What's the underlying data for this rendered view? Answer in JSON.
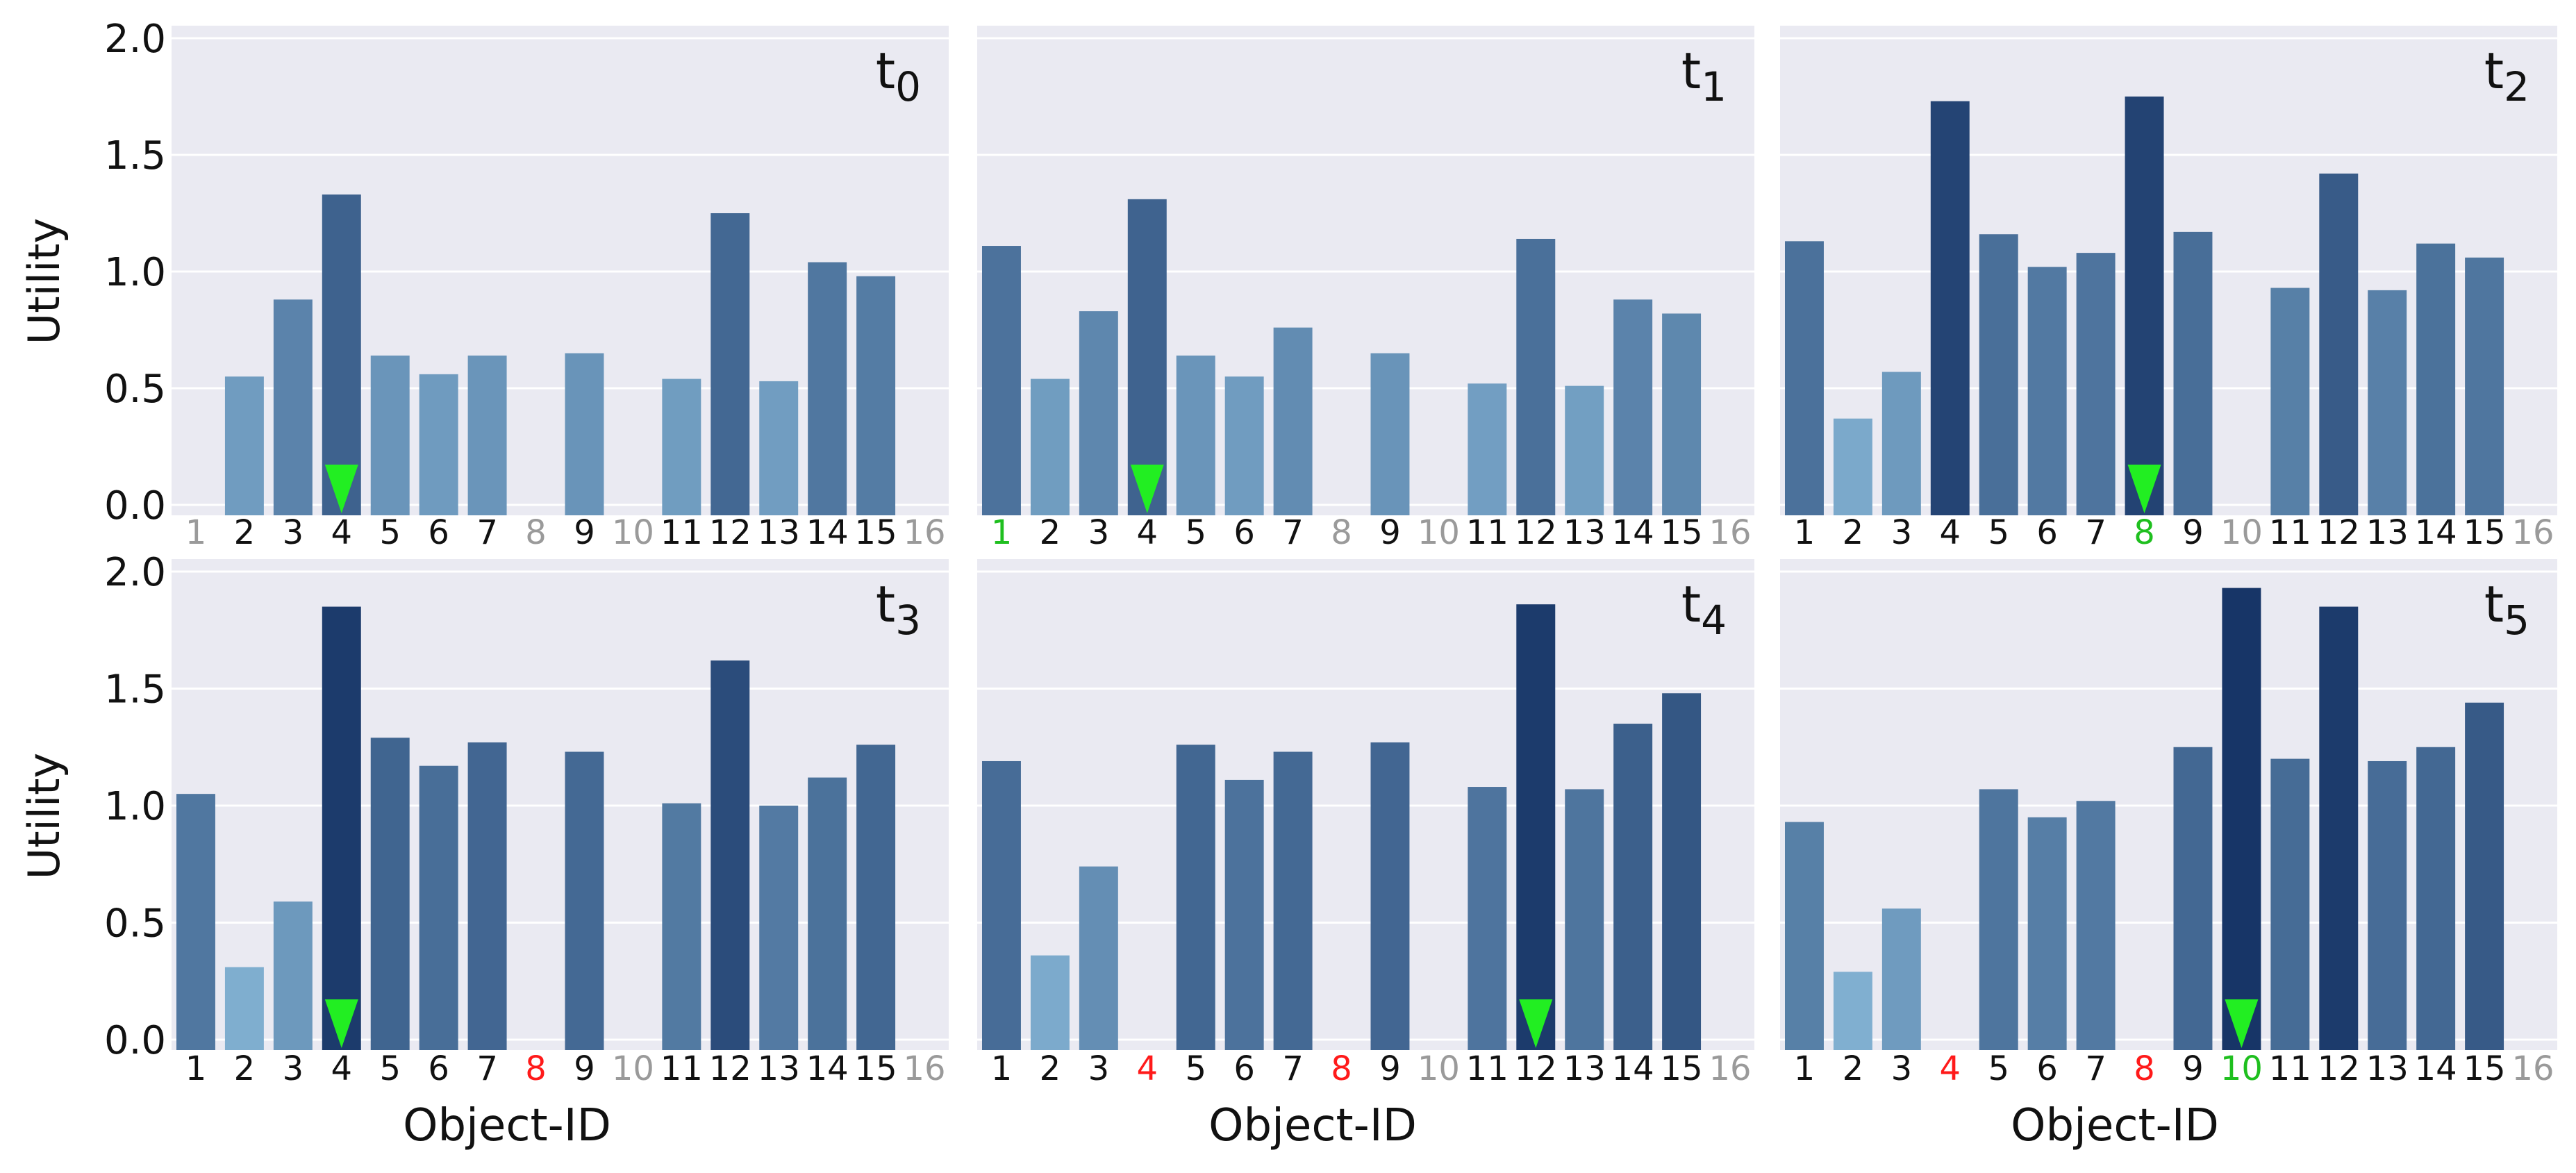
{
  "chart_data": {
    "type": "bar",
    "layout": "2x3 grid of small multiples",
    "xlabel": "Object-ID",
    "ylabel": "Utility",
    "ylim": [
      0,
      2.0
    ],
    "yticks": [
      "0.0",
      "0.5",
      "1.0",
      "1.5",
      "2.0"
    ],
    "categories": [
      "1",
      "2",
      "3",
      "4",
      "5",
      "6",
      "7",
      "8",
      "9",
      "10",
      "11",
      "12",
      "13",
      "14",
      "15",
      "16"
    ],
    "label_colors": {
      "default": "#111111",
      "absent": "#9a9a9a",
      "removed": "#ff1a1a",
      "new": "#1fbf1f",
      "marker": "#22ee22"
    },
    "panels": [
      {
        "label": "t",
        "sub": "0",
        "values": [
          null,
          0.55,
          0.88,
          1.33,
          0.64,
          0.56,
          0.64,
          null,
          0.65,
          null,
          0.54,
          1.25,
          0.53,
          1.04,
          0.98,
          null
        ],
        "label_status": [
          "absent",
          "default",
          "default",
          "default",
          "default",
          "default",
          "default",
          "absent",
          "default",
          "absent",
          "default",
          "default",
          "default",
          "default",
          "default",
          "absent"
        ],
        "selected": 4
      },
      {
        "label": "t",
        "sub": "1",
        "values": [
          1.11,
          0.54,
          0.83,
          1.31,
          0.64,
          0.55,
          0.76,
          null,
          0.65,
          null,
          0.52,
          1.14,
          0.51,
          0.88,
          0.82,
          null
        ],
        "label_status": [
          "new",
          "default",
          "default",
          "default",
          "default",
          "default",
          "default",
          "absent",
          "default",
          "absent",
          "default",
          "default",
          "default",
          "default",
          "default",
          "absent"
        ],
        "selected": 4
      },
      {
        "label": "t",
        "sub": "2",
        "values": [
          1.13,
          0.37,
          0.57,
          1.73,
          1.16,
          1.02,
          1.08,
          1.75,
          1.17,
          null,
          0.93,
          1.42,
          0.92,
          1.12,
          1.06,
          null
        ],
        "label_status": [
          "default",
          "default",
          "default",
          "default",
          "default",
          "default",
          "default",
          "new",
          "default",
          "absent",
          "default",
          "default",
          "default",
          "default",
          "default",
          "absent"
        ],
        "selected": 8
      },
      {
        "label": "t",
        "sub": "3",
        "values": [
          1.05,
          0.31,
          0.59,
          1.85,
          1.29,
          1.17,
          1.27,
          null,
          1.23,
          null,
          1.01,
          1.62,
          1.0,
          1.12,
          1.26,
          null
        ],
        "label_status": [
          "default",
          "default",
          "default",
          "default",
          "default",
          "default",
          "default",
          "removed",
          "default",
          "absent",
          "default",
          "default",
          "default",
          "default",
          "default",
          "absent"
        ],
        "selected": 4
      },
      {
        "label": "t",
        "sub": "4",
        "values": [
          1.19,
          0.36,
          0.74,
          null,
          1.26,
          1.11,
          1.23,
          null,
          1.27,
          null,
          1.08,
          1.86,
          1.07,
          1.35,
          1.48,
          null
        ],
        "label_status": [
          "default",
          "default",
          "default",
          "removed",
          "default",
          "default",
          "default",
          "removed",
          "default",
          "absent",
          "default",
          "default",
          "default",
          "default",
          "default",
          "absent"
        ],
        "selected": 12
      },
      {
        "label": "t",
        "sub": "5",
        "values": [
          0.93,
          0.29,
          0.56,
          null,
          1.07,
          0.95,
          1.02,
          null,
          1.25,
          1.93,
          1.2,
          1.85,
          1.19,
          1.25,
          1.44,
          null
        ],
        "label_status": [
          "default",
          "default",
          "default",
          "removed",
          "default",
          "default",
          "default",
          "removed",
          "default",
          "new",
          "default",
          "default",
          "default",
          "default",
          "default",
          "absent"
        ],
        "selected": 10
      }
    ]
  }
}
